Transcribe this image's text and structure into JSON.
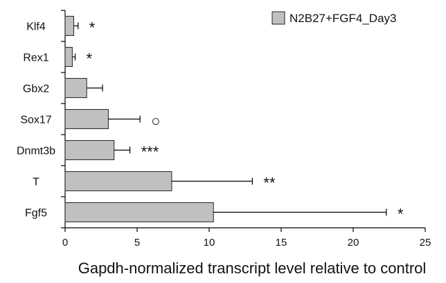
{
  "chart_data": {
    "type": "bar",
    "orientation": "horizontal",
    "categories": [
      "Klf4",
      "Rex1",
      "Gbx2",
      "Sox17",
      "Dnmt3b",
      "T",
      "Fgf5"
    ],
    "series": [
      {
        "name": "N2B27+FGF4_Day3",
        "values": [
          0.6,
          0.5,
          1.5,
          3.0,
          3.4,
          7.4,
          10.3
        ],
        "error_plus": [
          0.3,
          0.2,
          1.1,
          2.2,
          1.1,
          5.6,
          12.0
        ],
        "significance": [
          "*",
          "*",
          "",
          "○",
          "***",
          "**",
          "*"
        ],
        "color": "#c0c0c0"
      }
    ],
    "xlabel": "Gapdh-normalized transcript level relative to control",
    "ylabel": "",
    "title": "",
    "xlim": [
      0,
      25
    ],
    "xticks": [
      0,
      5,
      10,
      15,
      20,
      25
    ],
    "grid": false,
    "legend_position": "top-right"
  }
}
